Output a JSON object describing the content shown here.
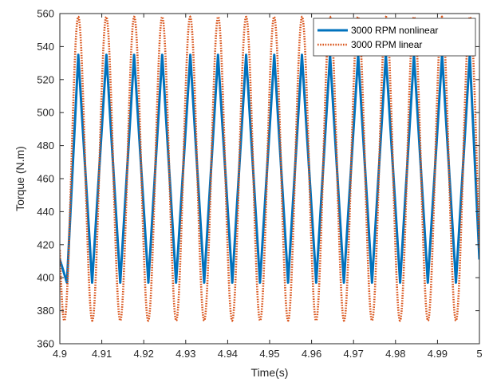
{
  "chart_data": {
    "type": "line",
    "title": "",
    "xlabel": "Time(s)",
    "ylabel": "Torque (N.m)",
    "xlim": [
      4.9,
      5.0
    ],
    "ylim": [
      360,
      560
    ],
    "xticks": [
      4.9,
      4.91,
      4.92,
      4.93,
      4.94,
      4.95,
      4.96,
      4.97,
      4.98,
      4.99,
      5.0
    ],
    "xtick_labels": [
      "4.9",
      "4.91",
      "4.92",
      "4.93",
      "4.94",
      "4.95",
      "4.96",
      "4.97",
      "4.98",
      "4.99",
      "5"
    ],
    "yticks": [
      360,
      380,
      400,
      420,
      440,
      460,
      480,
      500,
      520,
      540,
      560
    ],
    "ytick_labels": [
      "360",
      "380",
      "400",
      "420",
      "440",
      "460",
      "480",
      "500",
      "520",
      "540",
      "560"
    ],
    "grid": true,
    "legend_position": "top-right",
    "series": [
      {
        "name": "3000 RPM nonlinear",
        "style": "solid",
        "color": "#0072BD",
        "shape": "triangular",
        "period": 0.006667,
        "min": 397,
        "max": 535,
        "x": [
          4.9,
          4.9017,
          4.9044,
          4.9077,
          4.9111,
          4.9144,
          4.9177,
          4.9211,
          4.9244,
          4.9277,
          4.9311,
          4.9344,
          4.9377,
          4.9411,
          4.9444,
          4.9477,
          4.9511,
          4.9544,
          4.9577,
          4.9611,
          4.9644,
          4.9677,
          4.9711,
          4.9744,
          4.9777,
          4.9811,
          4.9844,
          4.9877,
          4.9911,
          4.9944,
          4.9977,
          5.0
        ],
        "y": [
          411,
          397,
          535,
          397,
          535,
          397,
          535,
          397,
          535,
          397,
          535,
          397,
          535,
          397,
          535,
          397,
          535,
          397,
          535,
          397,
          535,
          397,
          535,
          397,
          535,
          397,
          535,
          397,
          535,
          397,
          535,
          411
        ]
      },
      {
        "name": "3000 RPM linear",
        "style": "dotted",
        "color": "#D95319",
        "shape": "sinusoidal",
        "period": 0.006667,
        "min": 374,
        "max": 558,
        "x_peak_first": 4.9044,
        "x_trough_first": 4.9011
      }
    ]
  }
}
